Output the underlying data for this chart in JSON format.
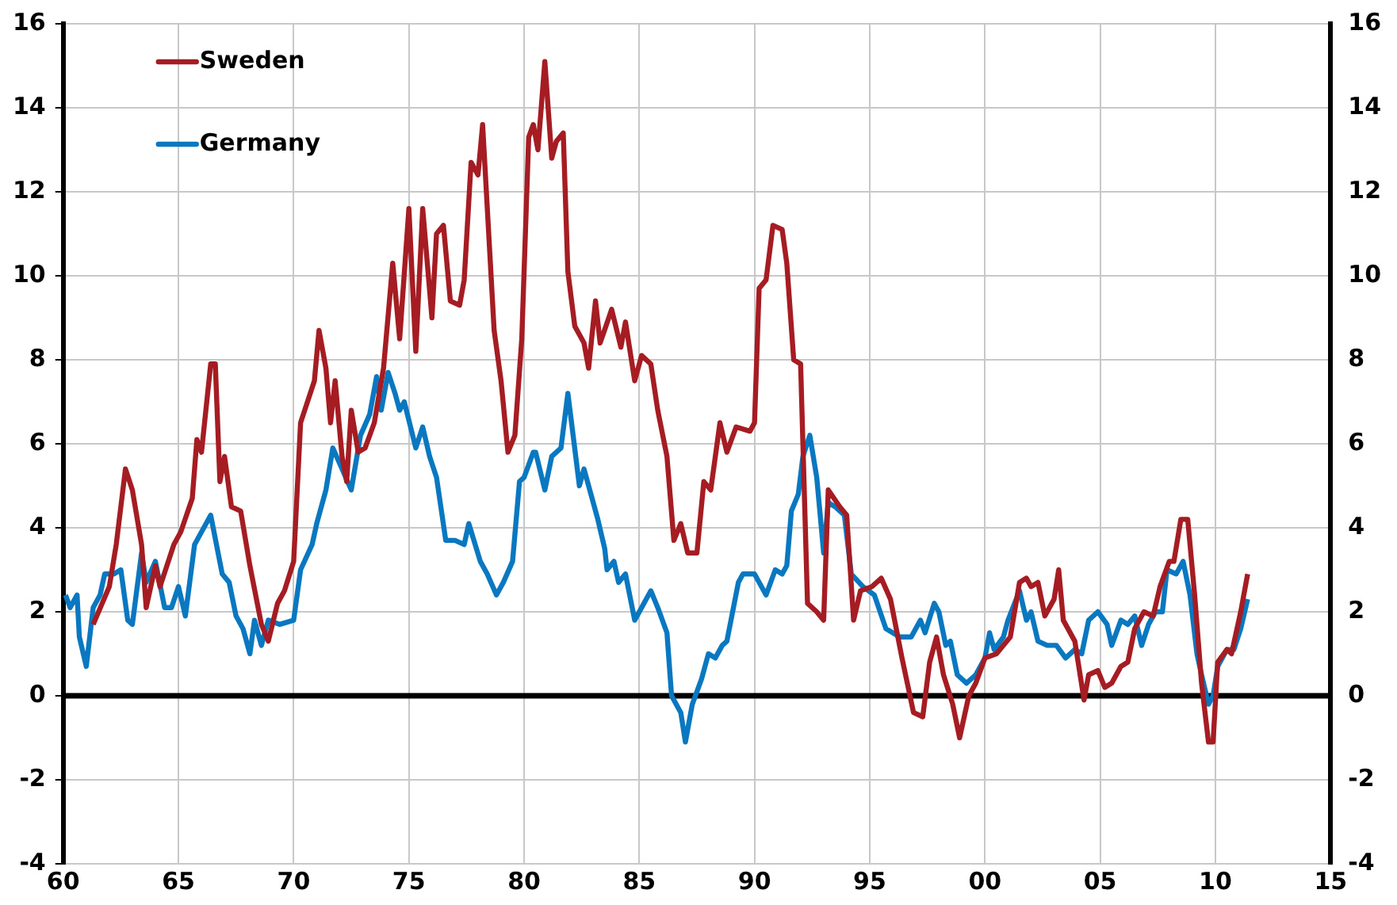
{
  "chart_data": {
    "type": "line",
    "xlim": [
      1960,
      2015
    ],
    "xticks": [
      {
        "value": 1960,
        "label": "60"
      },
      {
        "value": 1965,
        "label": "65"
      },
      {
        "value": 1970,
        "label": "70"
      },
      {
        "value": 1975,
        "label": "75"
      },
      {
        "value": 1980,
        "label": "80"
      },
      {
        "value": 1985,
        "label": "85"
      },
      {
        "value": 1990,
        "label": "90"
      },
      {
        "value": 1995,
        "label": "95"
      },
      {
        "value": 2000,
        "label": "00"
      },
      {
        "value": 2005,
        "label": "05"
      },
      {
        "value": 2010,
        "label": "10"
      },
      {
        "value": 2015,
        "label": "15"
      }
    ],
    "ylim": [
      -4,
      16
    ],
    "yticks": [
      -4,
      -2,
      0,
      2,
      4,
      6,
      8,
      10,
      12,
      14,
      16
    ],
    "y2lim": [
      -4,
      16
    ],
    "y2ticks": [
      -4,
      -2,
      0,
      2,
      4,
      6,
      8,
      10,
      12,
      14,
      16
    ],
    "grid": true,
    "legend": "top left",
    "ref_lines": [
      {
        "axis": "y",
        "value": 0,
        "color": "#000000"
      }
    ],
    "series": [
      {
        "name": "Sweden",
        "color": "#a51c22",
        "x": [
          1961.3,
          1962.0,
          1962.3,
          1962.7,
          1963.0,
          1963.4,
          1963.6,
          1964.0,
          1964.2,
          1964.8,
          1965.1,
          1965.6,
          1965.8,
          1966.0,
          1966.4,
          1966.6,
          1966.8,
          1967.0,
          1967.3,
          1967.7,
          1968.1,
          1968.6,
          1968.9,
          1969.3,
          1969.6,
          1970.0,
          1970.3,
          1970.6,
          1970.9,
          1971.1,
          1971.4,
          1971.6,
          1971.8,
          1972.1,
          1972.3,
          1972.5,
          1972.8,
          1973.1,
          1973.5,
          1973.9,
          1974.3,
          1974.6,
          1975.0,
          1975.3,
          1975.6,
          1976.0,
          1976.2,
          1976.5,
          1976.8,
          1977.2,
          1977.4,
          1977.7,
          1978.0,
          1978.2,
          1978.7,
          1979.0,
          1979.3,
          1979.6,
          1979.9,
          1980.2,
          1980.4,
          1980.6,
          1980.9,
          1981.2,
          1981.4,
          1981.7,
          1981.9,
          1982.2,
          1982.6,
          1982.8,
          1983.1,
          1983.3,
          1983.8,
          1984.2,
          1984.4,
          1984.8,
          1985.1,
          1985.5,
          1985.8,
          1986.2,
          1986.5,
          1986.8,
          1987.1,
          1987.5,
          1987.8,
          1988.1,
          1988.5,
          1988.8,
          1989.2,
          1989.8,
          1990.0,
          1990.2,
          1990.5,
          1990.8,
          1991.2,
          1991.4,
          1991.7,
          1992.0,
          1992.3,
          1992.7,
          1993.0,
          1993.2,
          1993.7,
          1994.0,
          1994.3,
          1994.6,
          1995.1,
          1995.5,
          1995.9,
          1996.4,
          1996.9,
          1997.3,
          1997.6,
          1997.9,
          1998.2,
          1998.6,
          1998.9,
          1999.3,
          1999.6,
          2000.0,
          2000.5,
          2001.1,
          2001.5,
          2001.8,
          2002.0,
          2002.3,
          2002.6,
          2003.0,
          2003.2,
          2003.4,
          2003.9,
          2004.3,
          2004.5,
          2004.9,
          2005.2,
          2005.5,
          2005.9,
          2006.2,
          2006.5,
          2006.9,
          2007.3,
          2007.6,
          2008.0,
          2008.2,
          2008.5,
          2008.8,
          2009.1,
          2009.4,
          2009.7,
          2009.9,
          2010.1,
          2010.5,
          2010.7,
          2011.1,
          2011.4
        ],
        "values": [
          1.7,
          2.6,
          3.6,
          5.4,
          4.9,
          3.6,
          2.1,
          3.1,
          2.6,
          3.6,
          3.9,
          4.7,
          6.1,
          5.8,
          7.9,
          7.9,
          5.1,
          5.7,
          4.5,
          4.4,
          3.1,
          1.7,
          1.3,
          2.2,
          2.5,
          3.2,
          6.5,
          7.0,
          7.5,
          8.7,
          7.8,
          6.5,
          7.5,
          5.7,
          5.1,
          6.8,
          5.8,
          5.9,
          6.5,
          7.8,
          10.3,
          8.5,
          11.6,
          8.2,
          11.6,
          9.0,
          11.0,
          11.2,
          9.4,
          9.3,
          9.9,
          12.7,
          12.4,
          13.6,
          8.7,
          7.5,
          5.8,
          6.2,
          8.5,
          13.3,
          13.6,
          13.0,
          15.1,
          12.8,
          13.2,
          13.4,
          10.1,
          8.8,
          8.4,
          7.8,
          9.4,
          8.4,
          9.2,
          8.3,
          8.9,
          7.5,
          8.1,
          7.9,
          6.8,
          5.7,
          3.7,
          4.1,
          3.4,
          3.4,
          5.1,
          4.9,
          6.5,
          5.8,
          6.4,
          6.3,
          6.5,
          9.7,
          9.9,
          11.2,
          11.1,
          10.3,
          8.0,
          7.9,
          2.2,
          2.0,
          1.8,
          4.9,
          4.5,
          4.3,
          1.8,
          2.5,
          2.6,
          2.8,
          2.3,
          0.9,
          -0.4,
          -0.5,
          0.8,
          1.4,
          0.5,
          -0.2,
          -1.0,
          0.0,
          0.3,
          0.9,
          1.0,
          1.4,
          2.7,
          2.8,
          2.6,
          2.7,
          1.9,
          2.3,
          3.0,
          1.8,
          1.3,
          -0.1,
          0.5,
          0.6,
          0.2,
          0.3,
          0.7,
          0.8,
          1.6,
          2.0,
          1.9,
          2.6,
          3.2,
          3.2,
          4.2,
          4.2,
          2.4,
          0.3,
          -1.1,
          -1.1,
          0.8,
          1.1,
          1.0,
          2.0,
          2.9
        ]
      },
      {
        "name": "Germany",
        "color": "#0a78c0",
        "x": [
          1960.1,
          1960.3,
          1960.6,
          1960.7,
          1961.0,
          1961.3,
          1961.6,
          1961.8,
          1962.2,
          1962.5,
          1962.8,
          1963.0,
          1963.4,
          1963.6,
          1964.0,
          1964.4,
          1964.7,
          1965.0,
          1965.3,
          1965.7,
          1966.0,
          1966.4,
          1966.9,
          1967.2,
          1967.5,
          1967.8,
          1968.1,
          1968.3,
          1968.6,
          1968.9,
          1969.4,
          1970.0,
          1970.3,
          1970.8,
          1971.0,
          1971.4,
          1971.7,
          1972.1,
          1972.5,
          1972.9,
          1973.3,
          1973.6,
          1973.8,
          1974.1,
          1974.4,
          1974.6,
          1974.8,
          1975.3,
          1975.6,
          1975.9,
          1976.2,
          1976.6,
          1977.0,
          1977.4,
          1977.6,
          1978.1,
          1978.4,
          1978.8,
          1979.1,
          1979.5,
          1979.8,
          1980.0,
          1980.4,
          1980.5,
          1980.9,
          1981.2,
          1981.6,
          1981.9,
          1982.4,
          1982.6,
          1982.9,
          1983.2,
          1983.5,
          1983.6,
          1983.9,
          1984.1,
          1984.4,
          1984.8,
          1985.1,
          1985.5,
          1985.8,
          1986.2,
          1986.4,
          1986.8,
          1987.0,
          1987.3,
          1987.7,
          1988.0,
          1988.3,
          1988.6,
          1988.8,
          1989.3,
          1989.5,
          1990.0,
          1990.5,
          1990.9,
          1991.2,
          1991.4,
          1991.6,
          1991.9,
          1992.1,
          1992.4,
          1992.7,
          1993.0,
          1993.2,
          1993.5,
          1993.9,
          1994.2,
          1994.7,
          1995.2,
          1995.7,
          1996.3,
          1996.8,
          1997.2,
          1997.4,
          1997.8,
          1998.0,
          1998.3,
          1998.5,
          1998.8,
          1999.2,
          1999.6,
          2000.0,
          2000.2,
          2000.4,
          2000.8,
          2001.0,
          2001.5,
          2001.8,
          2002.0,
          2002.3,
          2002.7,
          2003.1,
          2003.5,
          2003.9,
          2004.2,
          2004.5,
          2004.9,
          2005.3,
          2005.5,
          2005.9,
          2006.2,
          2006.5,
          2006.8,
          2007.1,
          2007.4,
          2007.7,
          2007.9,
          2008.3,
          2008.6,
          2008.9,
          2009.2,
          2009.4,
          2009.7,
          2009.9,
          2010.1,
          2010.5,
          2010.8,
          2011.1,
          2011.4
        ],
        "values": [
          2.4,
          2.1,
          2.4,
          1.4,
          0.7,
          2.1,
          2.4,
          2.9,
          2.9,
          3.0,
          1.8,
          1.7,
          3.4,
          2.7,
          3.2,
          2.1,
          2.1,
          2.6,
          1.9,
          3.6,
          3.9,
          4.3,
          2.9,
          2.7,
          1.9,
          1.6,
          1.0,
          1.8,
          1.2,
          1.8,
          1.7,
          1.8,
          3.0,
          3.6,
          4.1,
          4.9,
          5.9,
          5.4,
          4.9,
          6.2,
          6.7,
          7.6,
          6.8,
          7.7,
          7.2,
          6.8,
          7.0,
          5.9,
          6.4,
          5.7,
          5.2,
          3.7,
          3.7,
          3.6,
          4.1,
          3.2,
          2.9,
          2.4,
          2.7,
          3.2,
          5.1,
          5.2,
          5.8,
          5.8,
          4.9,
          5.7,
          5.9,
          7.2,
          5.0,
          5.4,
          4.8,
          4.2,
          3.5,
          3.0,
          3.2,
          2.7,
          2.9,
          1.8,
          2.1,
          2.5,
          2.1,
          1.5,
          0.0,
          -0.4,
          -1.1,
          -0.2,
          0.4,
          1.0,
          0.9,
          1.2,
          1.3,
          2.7,
          2.9,
          2.9,
          2.4,
          3.0,
          2.9,
          3.1,
          4.4,
          4.8,
          5.7,
          6.2,
          5.2,
          3.4,
          4.6,
          4.5,
          4.3,
          2.9,
          2.6,
          2.4,
          1.6,
          1.4,
          1.4,
          1.8,
          1.5,
          2.2,
          2.0,
          1.2,
          1.3,
          0.5,
          0.3,
          0.5,
          0.9,
          1.5,
          1.1,
          1.4,
          1.8,
          2.5,
          1.8,
          2.0,
          1.3,
          1.2,
          1.2,
          0.9,
          1.1,
          1.0,
          1.8,
          2.0,
          1.7,
          1.2,
          1.8,
          1.7,
          1.9,
          1.2,
          1.7,
          2.0,
          2.0,
          3.0,
          2.9,
          3.2,
          2.4,
          1.0,
          0.5,
          -0.2,
          0.0,
          0.7,
          1.1,
          1.1,
          1.6,
          2.3
        ]
      }
    ]
  }
}
